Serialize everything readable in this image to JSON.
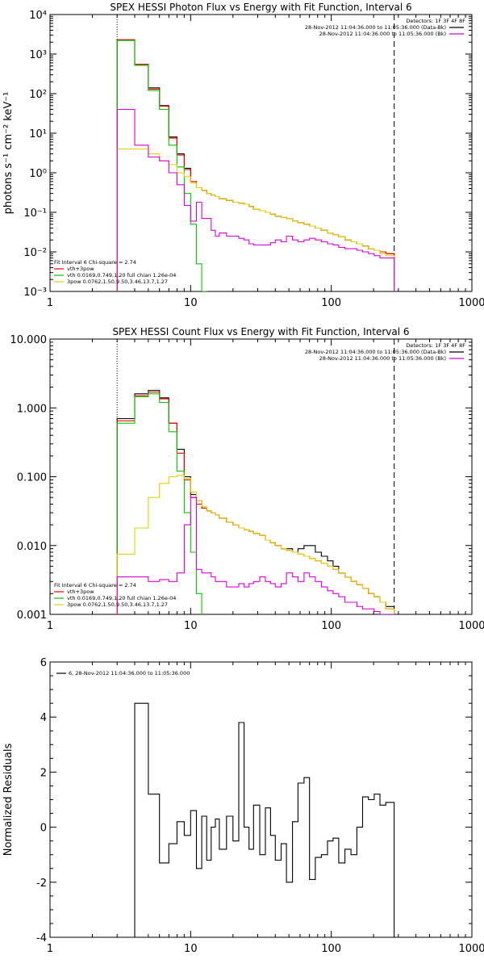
{
  "chart_data": [
    {
      "type": "line",
      "title": "SPEX HESSI Photon Flux vs Energy with Fit Function, Interval 6",
      "ylabel": "photons s⁻¹ cm⁻² keV⁻¹",
      "xlabel": "",
      "xscale": "log",
      "yscale": "log",
      "xlim": [
        1,
        1000
      ],
      "ylim": [
        0.001,
        10000
      ],
      "x_ticks": [
        1,
        10,
        100,
        1000
      ],
      "x_tick_labels": [
        "1",
        "10",
        "100",
        "1000"
      ],
      "y_ticks": [
        0.001,
        0.01,
        0.1,
        1,
        10,
        100,
        1000,
        10000
      ],
      "y_tick_labels": [
        "10⁻³",
        "10⁻²",
        "10⁻¹",
        "10⁰",
        "10¹",
        "10²",
        "10³",
        "10⁴"
      ],
      "vlines": [
        3,
        280
      ],
      "legend_top": {
        "title": "Detectors: 1F 3F 4F 8F",
        "entries": [
          {
            "text": "28-Nov-2012 11:04:36.000 to 11:05:36.000 (Data-Bk)",
            "color": "#000000"
          },
          {
            "text": "28-Nov-2012 11:04:36.000 to 11:05:36.000 (Bk)",
            "color": "#dd00dd"
          }
        ]
      },
      "legend_bottom": {
        "header": "Fit Interval 6   Chi-square = 2.74",
        "entries": [
          {
            "text": "vth+3pow",
            "color": "#ff0000"
          },
          {
            "text": "vth 0.0169,0.749,1.20  full chian 1.26e-04",
            "color": "#00cc00"
          },
          {
            "text": "3pow 0.0762,1.50,9.50,3.46,13.7,1.27",
            "color": "#e6d200"
          }
        ]
      },
      "edges": [
        3,
        4,
        5,
        6,
        7,
        8,
        9,
        10,
        11,
        12,
        13,
        14,
        15,
        16,
        18,
        20,
        22,
        24,
        26,
        28,
        31,
        34,
        37,
        40,
        44,
        48,
        53,
        58,
        64,
        70,
        77,
        85,
        94,
        103,
        113,
        125,
        138,
        152,
        167,
        184,
        202,
        222,
        244,
        280
      ],
      "series": [
        {
          "name": "Data-Bk",
          "color": "#000000",
          "values": [
            2300,
            550,
            140,
            50,
            8,
            3,
            1.3,
            0.6,
            0.42,
            0.36,
            0.3,
            0.27,
            0.25,
            0.22,
            0.2,
            0.18,
            0.17,
            0.16,
            0.14,
            0.12,
            0.11,
            0.1,
            0.09,
            0.08,
            0.075,
            0.07,
            0.06,
            0.055,
            0.05,
            0.045,
            0.04,
            0.035,
            0.03,
            0.027,
            0.024,
            0.02,
            0.018,
            0.016,
            0.014,
            0.012,
            0.011,
            0.01,
            0.009
          ]
        },
        {
          "name": "vth+3pow",
          "color": "#ff0000",
          "values": [
            2300,
            550,
            130,
            48,
            7.5,
            2.8,
            1.2,
            0.6,
            0.42,
            0.36,
            0.3,
            0.27,
            0.25,
            0.22,
            0.2,
            0.18,
            0.17,
            0.16,
            0.14,
            0.12,
            0.11,
            0.1,
            0.09,
            0.08,
            0.075,
            0.07,
            0.06,
            0.055,
            0.05,
            0.045,
            0.04,
            0.035,
            0.03,
            0.027,
            0.024,
            0.02,
            0.018,
            0.016,
            0.014,
            0.012,
            0.011,
            0.01,
            0.009
          ]
        },
        {
          "name": "vth",
          "color": "#00cc00",
          "values": [
            2200,
            520,
            120,
            40,
            5,
            1.4,
            0.3,
            0.05,
            0.005,
            0.001,
            0.0004
          ]
        },
        {
          "name": "3pow",
          "color": "#e6d200",
          "values": [
            4,
            4,
            3,
            2,
            1.6,
            1,
            0.8,
            0.55,
            0.42,
            0.36,
            0.3,
            0.27,
            0.25,
            0.22,
            0.2,
            0.18,
            0.17,
            0.16,
            0.14,
            0.12,
            0.11,
            0.1,
            0.09,
            0.08,
            0.075,
            0.07,
            0.06,
            0.055,
            0.05,
            0.045,
            0.04,
            0.035,
            0.03,
            0.027,
            0.024,
            0.02,
            0.018,
            0.016,
            0.014,
            0.012,
            0.011,
            0.009,
            0.008
          ]
        },
        {
          "name": "Bk",
          "color": "#dd00dd",
          "values": [
            40,
            5,
            2.5,
            2,
            1,
            0.5,
            0.15,
            0.06,
            0.18,
            0.07,
            0.07,
            0.035,
            0.025,
            0.03,
            0.025,
            0.025,
            0.022,
            0.02,
            0.016,
            0.015,
            0.015,
            0.015,
            0.017,
            0.02,
            0.018,
            0.025,
            0.02,
            0.018,
            0.02,
            0.022,
            0.02,
            0.018,
            0.016,
            0.015,
            0.013,
            0.012,
            0.012,
            0.011,
            0.01,
            0.009,
            0.008,
            0.007,
            0.007
          ]
        }
      ]
    },
    {
      "type": "line",
      "title": "SPEX HESSI Count Flux vs Energy with Fit Function, Interval 6",
      "ylabel": "",
      "xlabel": "",
      "xscale": "log",
      "yscale": "log",
      "xlim": [
        1,
        1000
      ],
      "ylim": [
        0.001,
        10
      ],
      "x_ticks": [
        1,
        10,
        100,
        1000
      ],
      "x_tick_labels": [
        "1",
        "10",
        "100",
        "1000"
      ],
      "y_ticks": [
        0.001,
        0.01,
        0.1,
        1,
        10
      ],
      "y_tick_labels": [
        "0.001",
        "0.010",
        "0.100",
        "1.000",
        "10.000"
      ],
      "vlines": [
        3,
        280
      ],
      "legend_top": {
        "title": "Detectors: 1F 3F 4F 8F",
        "entries": [
          {
            "text": "28-Nov-2012 11:04:36.000 to 11:05:36.000 (Data-Bk)",
            "color": "#000000"
          },
          {
            "text": "28-Nov-2012 11:04:36.000 to 11:05:36.000 (Bk)",
            "color": "#dd00dd"
          }
        ]
      },
      "legend_bottom": {
        "header": "Fit Interval 6   Chi-square = 2.74",
        "entries": [
          {
            "text": "vth+3pow",
            "color": "#ff0000"
          },
          {
            "text": "vth 0.0169,0.749,1.20  full chian 1.26e-04",
            "color": "#00cc00"
          },
          {
            "text": "3pow 0.0762,1.50,9.50,3.46,13.7,1.27",
            "color": "#e6d200"
          }
        ]
      },
      "edges": [
        3,
        4,
        5,
        6,
        7,
        8,
        9,
        10,
        11,
        12,
        13,
        14,
        15,
        16,
        18,
        20,
        22,
        24,
        26,
        28,
        31,
        34,
        37,
        40,
        44,
        48,
        53,
        58,
        64,
        70,
        77,
        85,
        94,
        103,
        113,
        125,
        138,
        152,
        167,
        184,
        202,
        222,
        244,
        280
      ],
      "series": [
        {
          "name": "Data-Bk",
          "color": "#000000",
          "values": [
            0.7,
            1.6,
            1.8,
            1.4,
            0.6,
            0.25,
            0.1,
            0.055,
            0.045,
            0.035,
            0.032,
            0.03,
            0.028,
            0.025,
            0.022,
            0.02,
            0.018,
            0.017,
            0.016,
            0.015,
            0.014,
            0.012,
            0.011,
            0.01,
            0.009,
            0.009,
            0.008,
            0.009,
            0.01,
            0.01,
            0.008,
            0.007,
            0.006,
            0.005,
            0.004,
            0.0035,
            0.003,
            0.0027,
            0.0024,
            0.002,
            0.0018,
            0.0015,
            0.0013
          ]
        },
        {
          "name": "vth+3pow",
          "color": "#ff0000",
          "values": [
            0.65,
            1.5,
            1.7,
            1.35,
            0.6,
            0.22,
            0.09,
            0.05,
            0.04,
            0.035,
            0.032,
            0.03,
            0.028,
            0.025,
            0.022,
            0.02,
            0.018,
            0.017,
            0.016,
            0.015,
            0.014,
            0.012,
            0.011,
            0.01,
            0.009,
            0.0085,
            0.008,
            0.0075,
            0.007,
            0.0065,
            0.006,
            0.0055,
            0.005,
            0.0045,
            0.004,
            0.0035,
            0.003,
            0.0027,
            0.0024,
            0.002,
            0.0018,
            0.0015,
            0.0012
          ]
        },
        {
          "name": "vth",
          "color": "#00cc00",
          "values": [
            0.6,
            1.45,
            1.6,
            1.2,
            0.45,
            0.12,
            0.03,
            0.008,
            0.002,
            0.0008
          ]
        },
        {
          "name": "3pow",
          "color": "#e6d200",
          "values": [
            0.0075,
            0.018,
            0.05,
            0.08,
            0.1,
            0.105,
            0.095,
            0.06,
            0.045,
            0.037,
            0.032,
            0.03,
            0.028,
            0.025,
            0.022,
            0.02,
            0.018,
            0.017,
            0.016,
            0.015,
            0.014,
            0.012,
            0.011,
            0.01,
            0.009,
            0.0085,
            0.008,
            0.0075,
            0.007,
            0.0065,
            0.006,
            0.0055,
            0.005,
            0.0045,
            0.004,
            0.0035,
            0.003,
            0.0027,
            0.0024,
            0.002,
            0.0018,
            0.0015,
            0.0012
          ]
        },
        {
          "name": "Bk",
          "color": "#dd00dd",
          "values": [
            0.0035,
            0.0035,
            0.003,
            0.0032,
            0.003,
            0.004,
            0.02,
            0.05,
            0.0045,
            0.004,
            0.004,
            0.0035,
            0.003,
            0.003,
            0.0025,
            0.0025,
            0.0028,
            0.0025,
            0.0028,
            0.003,
            0.0035,
            0.003,
            0.0028,
            0.0025,
            0.0028,
            0.004,
            0.0035,
            0.003,
            0.004,
            0.0035,
            0.003,
            0.0025,
            0.0022,
            0.002,
            0.0018,
            0.0015,
            0.0015,
            0.0013,
            0.0012,
            0.0012,
            0.0011,
            0.001,
            0.001
          ]
        }
      ]
    },
    {
      "type": "line",
      "title": "",
      "ylabel": "Normalized Residuals",
      "xlabel": "",
      "xscale": "log",
      "yscale": "linear",
      "xlim": [
        1,
        1000
      ],
      "ylim": [
        -4,
        6
      ],
      "x_ticks": [
        1,
        10,
        100,
        1000
      ],
      "x_tick_labels": [
        "1",
        "10",
        "100",
        "1000"
      ],
      "y_ticks": [
        -4,
        -2,
        0,
        2,
        4,
        6
      ],
      "y_tick_labels": [
        "-4",
        "-2",
        "0",
        "2",
        "4",
        "6"
      ],
      "legend_top": {
        "entries": [
          {
            "text": "6, 28-Nov-2012 11:04:36.000 to 11:05:36.000",
            "color": "#000000"
          }
        ]
      },
      "edges": [
        3,
        4,
        5,
        6,
        7,
        8,
        9,
        10,
        11,
        12,
        13,
        14,
        15,
        16,
        18,
        20,
        22,
        24,
        26,
        28,
        31,
        34,
        37,
        40,
        44,
        48,
        53,
        58,
        64,
        70,
        77,
        85,
        94,
        103,
        113,
        125,
        138,
        152,
        167,
        184,
        202,
        222,
        244,
        280
      ],
      "series": [
        {
          "name": "6",
          "color": "#000000",
          "values": [
            -4,
            4.5,
            1.2,
            -1.3,
            -0.6,
            0.2,
            -0.3,
            0.6,
            -1.5,
            0.4,
            -1.2,
            0,
            0.3,
            -0.8,
            0.4,
            -0.5,
            3.8,
            0,
            -0.8,
            0.8,
            -1,
            0.7,
            -0.3,
            -1.2,
            -0.6,
            -2,
            0.2,
            1.6,
            1.8,
            -1.9,
            -1.1,
            -1,
            -0.5,
            -0.4,
            -1.3,
            -0.8,
            -1,
            0,
            1.1,
            1.0,
            1.2,
            0.8,
            0.9
          ]
        }
      ]
    }
  ]
}
